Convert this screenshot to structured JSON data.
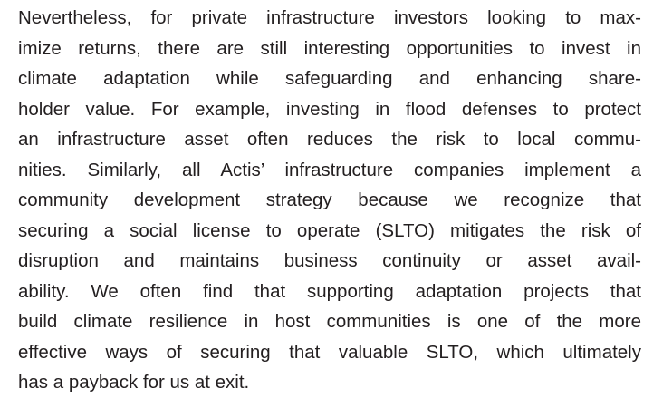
{
  "paragraph": {
    "lines": [
      "Nevertheless, for private infrastructure investors looking to max-",
      "imize returns, there are still interesting opportunities to invest in",
      "climate adaptation while safeguarding and enhancing share-",
      "holder value. For example, investing in flood defenses to protect",
      "an infrastructure asset often reduces the risk to local commu-",
      "nities. Similarly, all Actis’ infrastructure companies implement a",
      "community development strategy because we recognize that",
      "securing a social license to operate (SLTO) mitigates the risk of",
      "disruption and maintains business continuity or asset avail-",
      "ability. We often find that supporting adaptation projects that",
      "build climate resilience in host communities is one of the more",
      "effective ways of securing that valuable SLTO, which ultimately",
      "has a payback for us at exit."
    ]
  }
}
